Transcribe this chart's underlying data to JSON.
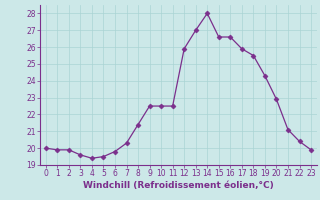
{
  "x": [
    0,
    1,
    2,
    3,
    4,
    5,
    6,
    7,
    8,
    9,
    10,
    11,
    12,
    13,
    14,
    15,
    16,
    17,
    18,
    19,
    20,
    21,
    22,
    23
  ],
  "y": [
    20.0,
    19.9,
    19.9,
    19.6,
    19.4,
    19.5,
    19.8,
    20.3,
    21.4,
    22.5,
    22.5,
    22.5,
    25.9,
    27.0,
    28.0,
    26.6,
    26.6,
    25.9,
    25.5,
    24.3,
    22.9,
    21.1,
    20.4,
    19.9
  ],
  "line_color": "#7b2f8c",
  "marker": "D",
  "marker_size": 2.5,
  "bg_color": "#cce8e8",
  "grid_color": "#aad4d4",
  "xlabel": "Windchill (Refroidissement éolien,°C)",
  "xlabel_color": "#7b2f8c",
  "tick_color": "#7b2f8c",
  "ylim": [
    19,
    28.5
  ],
  "yticks": [
    19,
    20,
    21,
    22,
    23,
    24,
    25,
    26,
    27,
    28
  ],
  "xlim": [
    -0.5,
    23.5
  ],
  "spine_color": "#7b2f8c",
  "tick_fontsize": 5.5,
  "xlabel_fontsize": 6.5
}
